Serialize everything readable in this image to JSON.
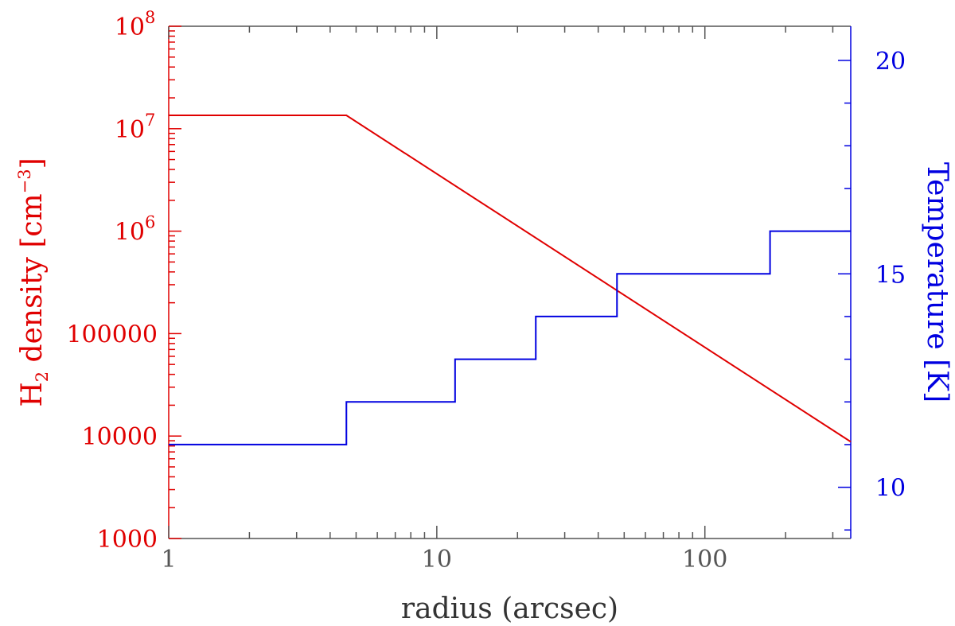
{
  "chart_data": {
    "type": "line",
    "title": "",
    "xlabel": "radius (arcsec)",
    "xscale": "log",
    "xlim": [
      1,
      350
    ],
    "x_tick_labels": [
      "1",
      "10",
      "100"
    ],
    "x_tick_values": [
      1,
      10,
      100
    ],
    "left_axis": {
      "label_parts": [
        "H",
        "2",
        " density [cm",
        "−3",
        "]"
      ],
      "scale": "log",
      "ylim": [
        1000,
        100000000
      ],
      "color": "#e00000",
      "tick_labels": [
        {
          "value": 1000,
          "text": "1000",
          "exp": ""
        },
        {
          "value": 10000,
          "text": "10000",
          "exp": ""
        },
        {
          "value": 100000,
          "text": "100000",
          "exp": ""
        },
        {
          "value": 1000000,
          "text": "10",
          "exp": "6"
        },
        {
          "value": 10000000,
          "text": "10",
          "exp": "7"
        },
        {
          "value": 100000000,
          "text": "10",
          "exp": "8"
        }
      ]
    },
    "right_axis": {
      "label": "Temperature [K]",
      "scale": "linear",
      "ylim": [
        8.8,
        20.8
      ],
      "color": "#0000e0",
      "tick_labels": [
        {
          "value": 10,
          "text": "10"
        },
        {
          "value": 15,
          "text": "15"
        },
        {
          "value": 20,
          "text": "20"
        }
      ]
    },
    "series": [
      {
        "axis": "left",
        "color": "#e00000",
        "shape": "line",
        "x": [
          1,
          4.6,
          350
        ],
        "y": [
          13500000,
          13500000,
          8800
        ]
      },
      {
        "axis": "right",
        "color": "#0000e0",
        "shape": "step",
        "x": [
          1,
          4.6,
          11.7,
          23.4,
          47,
          175,
          350
        ],
        "y": [
          11,
          12,
          13,
          14,
          15,
          16,
          16
        ]
      }
    ]
  }
}
